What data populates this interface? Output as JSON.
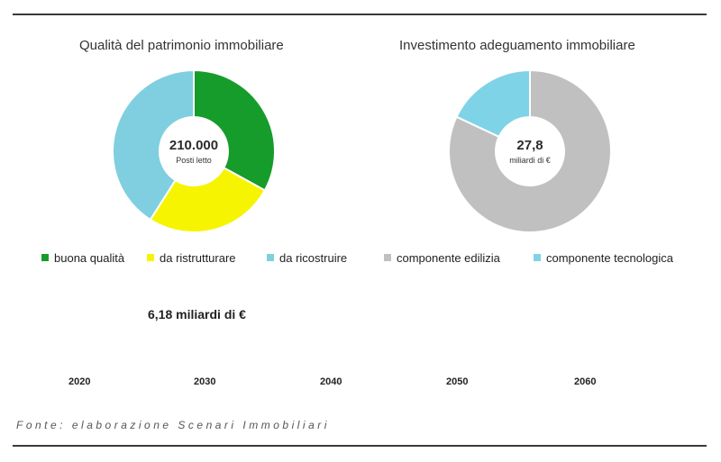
{
  "chart_data": [
    {
      "type": "pie",
      "title": "Qualità del patrimonio immobiliare",
      "center_value": "210.000",
      "center_label": "Posti letto",
      "categories": [
        "buona qualità",
        "da ristrutturare",
        "da ricostruire"
      ],
      "values": [
        33,
        26,
        41
      ],
      "colors": [
        "#169c2b",
        "#f6f400",
        "#7fcfe0"
      ],
      "legend": "bottom"
    },
    {
      "type": "pie",
      "title": "Investimento adeguamento immobiliare",
      "center_value": "27,8",
      "center_label": "miliardi di €",
      "categories": [
        "componente edilizia",
        "componente tecnologica"
      ],
      "values": [
        82,
        18
      ],
      "colors": [
        "#c0c0c0",
        "#7fd3e6"
      ],
      "legend": "bottom"
    }
  ],
  "note": "6,18 miliardi di €",
  "years": [
    "2020",
    "2030",
    "2040",
    "2050",
    "2060"
  ],
  "source": "Fonte: elaborazione Scenari Immobiliari"
}
